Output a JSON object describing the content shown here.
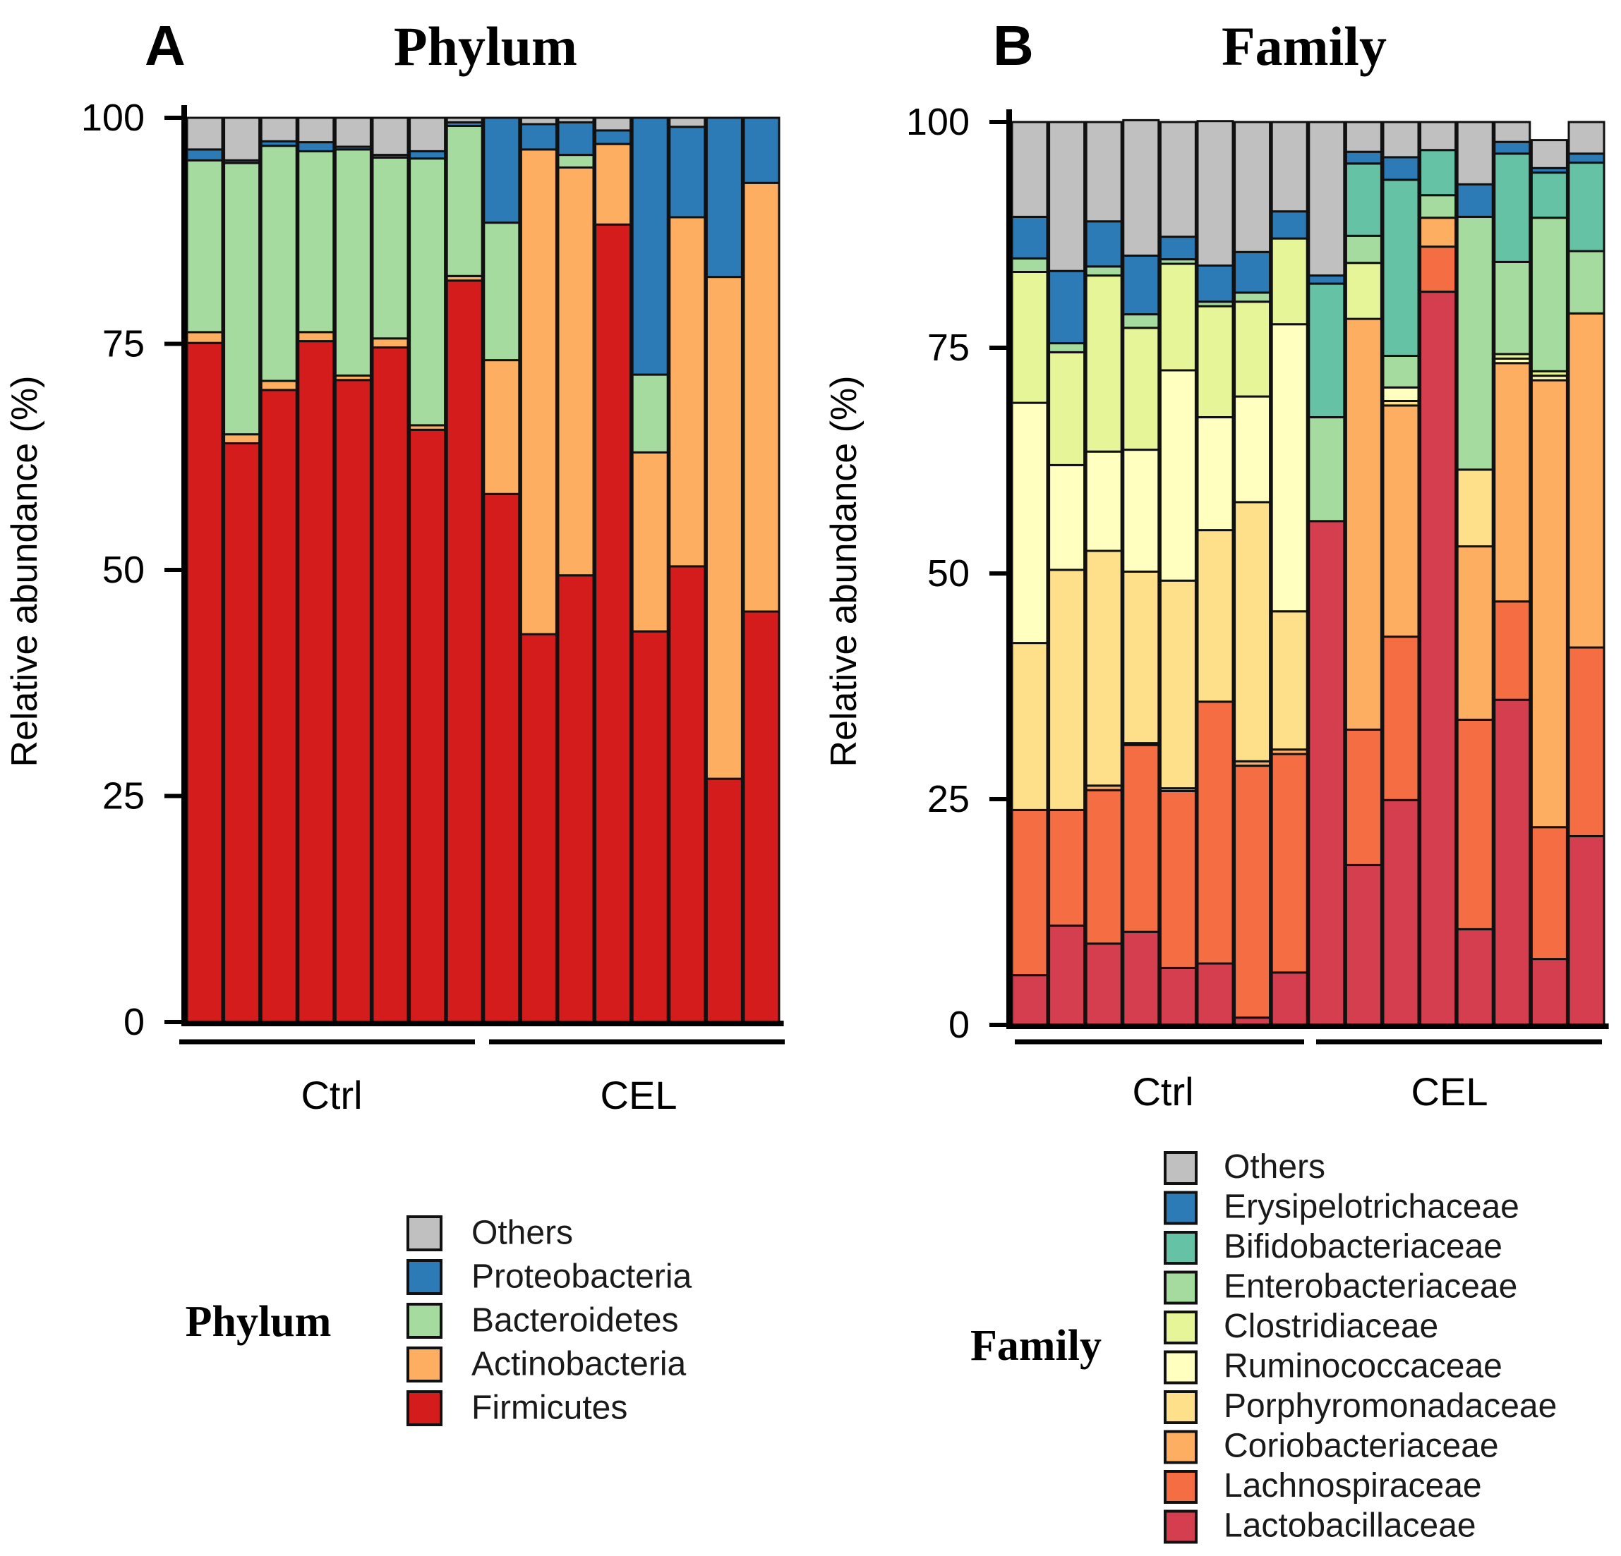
{
  "chart_data": [
    {
      "type": "bar",
      "stacked": true,
      "panel_label": "A",
      "title": "Phylum",
      "ylabel": "Relative abundance (%)",
      "xlabel": "",
      "ylim": [
        0,
        100
      ],
      "yticks": [
        "0",
        "25",
        "50",
        "75",
        "100"
      ],
      "groups": [
        {
          "label": "Ctrl",
          "count": 8
        },
        {
          "label": "CEL",
          "count": 8
        }
      ],
      "legend_title": "Phylum",
      "series": [
        {
          "name": "Firmicutes",
          "color": "#d41c1c",
          "values": [
            75.1,
            64.0,
            69.9,
            75.3,
            71.0,
            74.6,
            65.5,
            82.0,
            58.4,
            42.9,
            49.4,
            88.2,
            43.2,
            50.4,
            26.9,
            45.4
          ]
        },
        {
          "name": "Actinobacteria",
          "color": "#fdae61",
          "values": [
            1.2,
            1.0,
            1.0,
            1.0,
            0.5,
            1.0,
            0.5,
            0.5,
            14.8,
            53.6,
            45.1,
            8.9,
            19.8,
            38.6,
            55.5,
            47.4
          ]
        },
        {
          "name": "Bacteroidetes",
          "color": "#a6dba0",
          "values": [
            19.0,
            30.0,
            26.0,
            20.0,
            25.0,
            20.0,
            29.5,
            16.6,
            15.2,
            0.0,
            1.4,
            0.0,
            8.6,
            0.0,
            0.0,
            0.0
          ]
        },
        {
          "name": "Proteobacteria",
          "color": "#2c7bb6",
          "values": [
            1.2,
            0.3,
            0.5,
            1.0,
            0.3,
            0.3,
            0.8,
            0.4,
            11.6,
            2.8,
            3.6,
            1.5,
            28.4,
            10.0,
            17.6,
            7.2
          ]
        },
        {
          "name": "Others",
          "color": "#c0c0c0",
          "values": [
            3.5,
            4.7,
            2.6,
            2.7,
            3.2,
            4.1,
            3.7,
            0.5,
            0.0,
            0.7,
            0.5,
            1.4,
            0.0,
            1.0,
            0.0,
            0.0
          ]
        }
      ]
    },
    {
      "type": "bar",
      "stacked": true,
      "panel_label": "B",
      "title": "Family",
      "ylabel": "Relative abundance (%)",
      "xlabel": "",
      "ylim": [
        0,
        100
      ],
      "yticks": [
        "0",
        "25",
        "50",
        "75",
        "100"
      ],
      "groups": [
        {
          "label": "Ctrl",
          "count": 8
        },
        {
          "label": "CEL",
          "count": 8
        }
      ],
      "legend_title": "Family",
      "series": [
        {
          "name": "Lactobacillaceae",
          "color": "#d53e4f",
          "values": [
            5.5,
            11.0,
            9.0,
            10.3,
            6.3,
            6.8,
            0.8,
            5.8,
            55.8,
            17.7,
            24.9,
            81.2,
            10.6,
            36.0,
            7.3,
            20.9
          ]
        },
        {
          "name": "Lachnospiraceae",
          "color": "#f46d43",
          "values": [
            18.3,
            12.8,
            17.0,
            20.7,
            19.6,
            29.0,
            27.9,
            24.2,
            0.0,
            15.0,
            18.1,
            5.0,
            23.2,
            10.9,
            14.6,
            20.9
          ]
        },
        {
          "name": "Coriobacteriaceae",
          "color": "#fdae61",
          "values": [
            0.0,
            0.0,
            0.5,
            0.2,
            0.3,
            0.0,
            0.5,
            0.5,
            0.0,
            45.5,
            25.6,
            3.2,
            19.2,
            26.4,
            49.5,
            37.0
          ]
        },
        {
          "name": "Porphyromonadaceae",
          "color": "#fee08b",
          "values": [
            18.5,
            26.6,
            26.0,
            19.0,
            23.0,
            19.0,
            28.7,
            15.3,
            0.0,
            0.0,
            0.5,
            0.0,
            8.5,
            0.0,
            0.0,
            0.0
          ]
        },
        {
          "name": "Ruminococcaceae",
          "color": "#ffffbf",
          "values": [
            26.6,
            11.6,
            11.0,
            13.5,
            23.3,
            12.5,
            11.7,
            31.8,
            0.0,
            0.0,
            1.5,
            0.0,
            0.0,
            0.5,
            0.5,
            0.0
          ]
        },
        {
          "name": "Clostridiaceae",
          "color": "#e6f598",
          "values": [
            14.5,
            12.5,
            19.5,
            13.5,
            11.8,
            12.3,
            10.5,
            9.5,
            0.0,
            6.2,
            0.0,
            0.0,
            0.0,
            0.5,
            0.5,
            0.0
          ]
        },
        {
          "name": "Enterobacteriaceae",
          "color": "#a6dba0",
          "values": [
            1.5,
            1.0,
            1.0,
            1.5,
            0.5,
            0.5,
            1.0,
            0.0,
            11.5,
            3.0,
            3.5,
            2.5,
            28.0,
            10.2,
            17.0,
            6.9
          ]
        },
        {
          "name": "Bifidobacteriaceae",
          "color": "#66c2a5",
          "values": [
            0.0,
            0.0,
            0.0,
            0.0,
            0.0,
            0.0,
            0.0,
            0.0,
            14.8,
            8.0,
            19.5,
            5.0,
            0.0,
            12.0,
            5.0,
            9.8
          ]
        },
        {
          "name": "Erysipelotrichaceae",
          "color": "#2c7bb6",
          "values": [
            4.6,
            8.0,
            5.0,
            6.5,
            2.5,
            4.0,
            4.5,
            3.0,
            0.9,
            1.3,
            2.5,
            0.0,
            3.6,
            1.3,
            0.5,
            1.0
          ]
        },
        {
          "name": "Others",
          "color": "#c0c0c0",
          "values": [
            10.5,
            16.5,
            11.0,
            15.0,
            12.7,
            16.0,
            14.4,
            9.9,
            17.0,
            3.3,
            3.9,
            3.1,
            6.9,
            2.2,
            3.1,
            3.5
          ]
        }
      ]
    }
  ]
}
